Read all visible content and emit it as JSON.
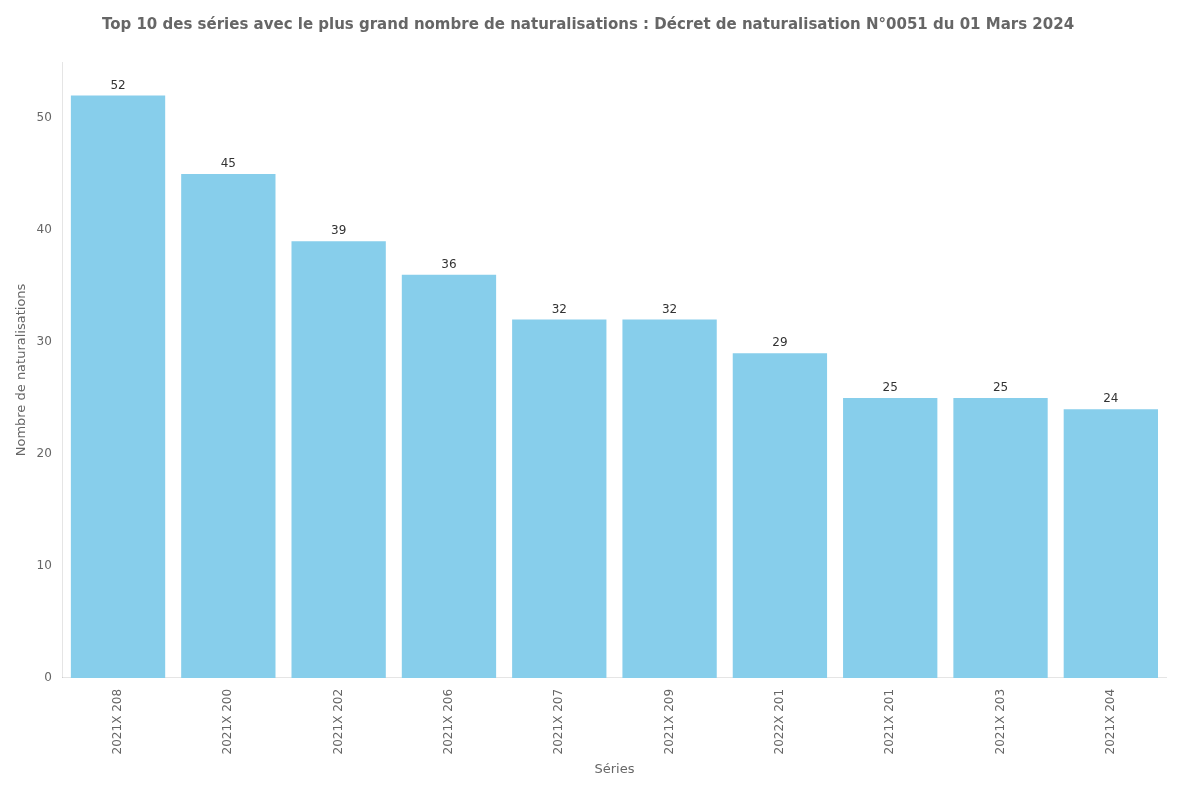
{
  "chart_data": {
    "type": "bar",
    "title": "Top 10 des séries avec le plus grand nombre de naturalisations : Décret de naturalisation N°0051 du 01 Mars 2024",
    "x_label": "Séries",
    "y_label": "Nombre de naturalisations",
    "categories": [
      "2021X 208",
      "2021X 200",
      "2021X 202",
      "2021X 206",
      "2021X 207",
      "2021X 209",
      "2022X 201",
      "2021X 201",
      "2021X 203",
      "2021X 204"
    ],
    "values": [
      52,
      45,
      39,
      36,
      32,
      32,
      29,
      25,
      25,
      24
    ],
    "color": "#87CEEB",
    "ylim": [
      0,
      55
    ],
    "yticks": [
      0,
      10,
      20,
      30,
      40,
      50
    ],
    "grid": false,
    "data_labels": true
  }
}
